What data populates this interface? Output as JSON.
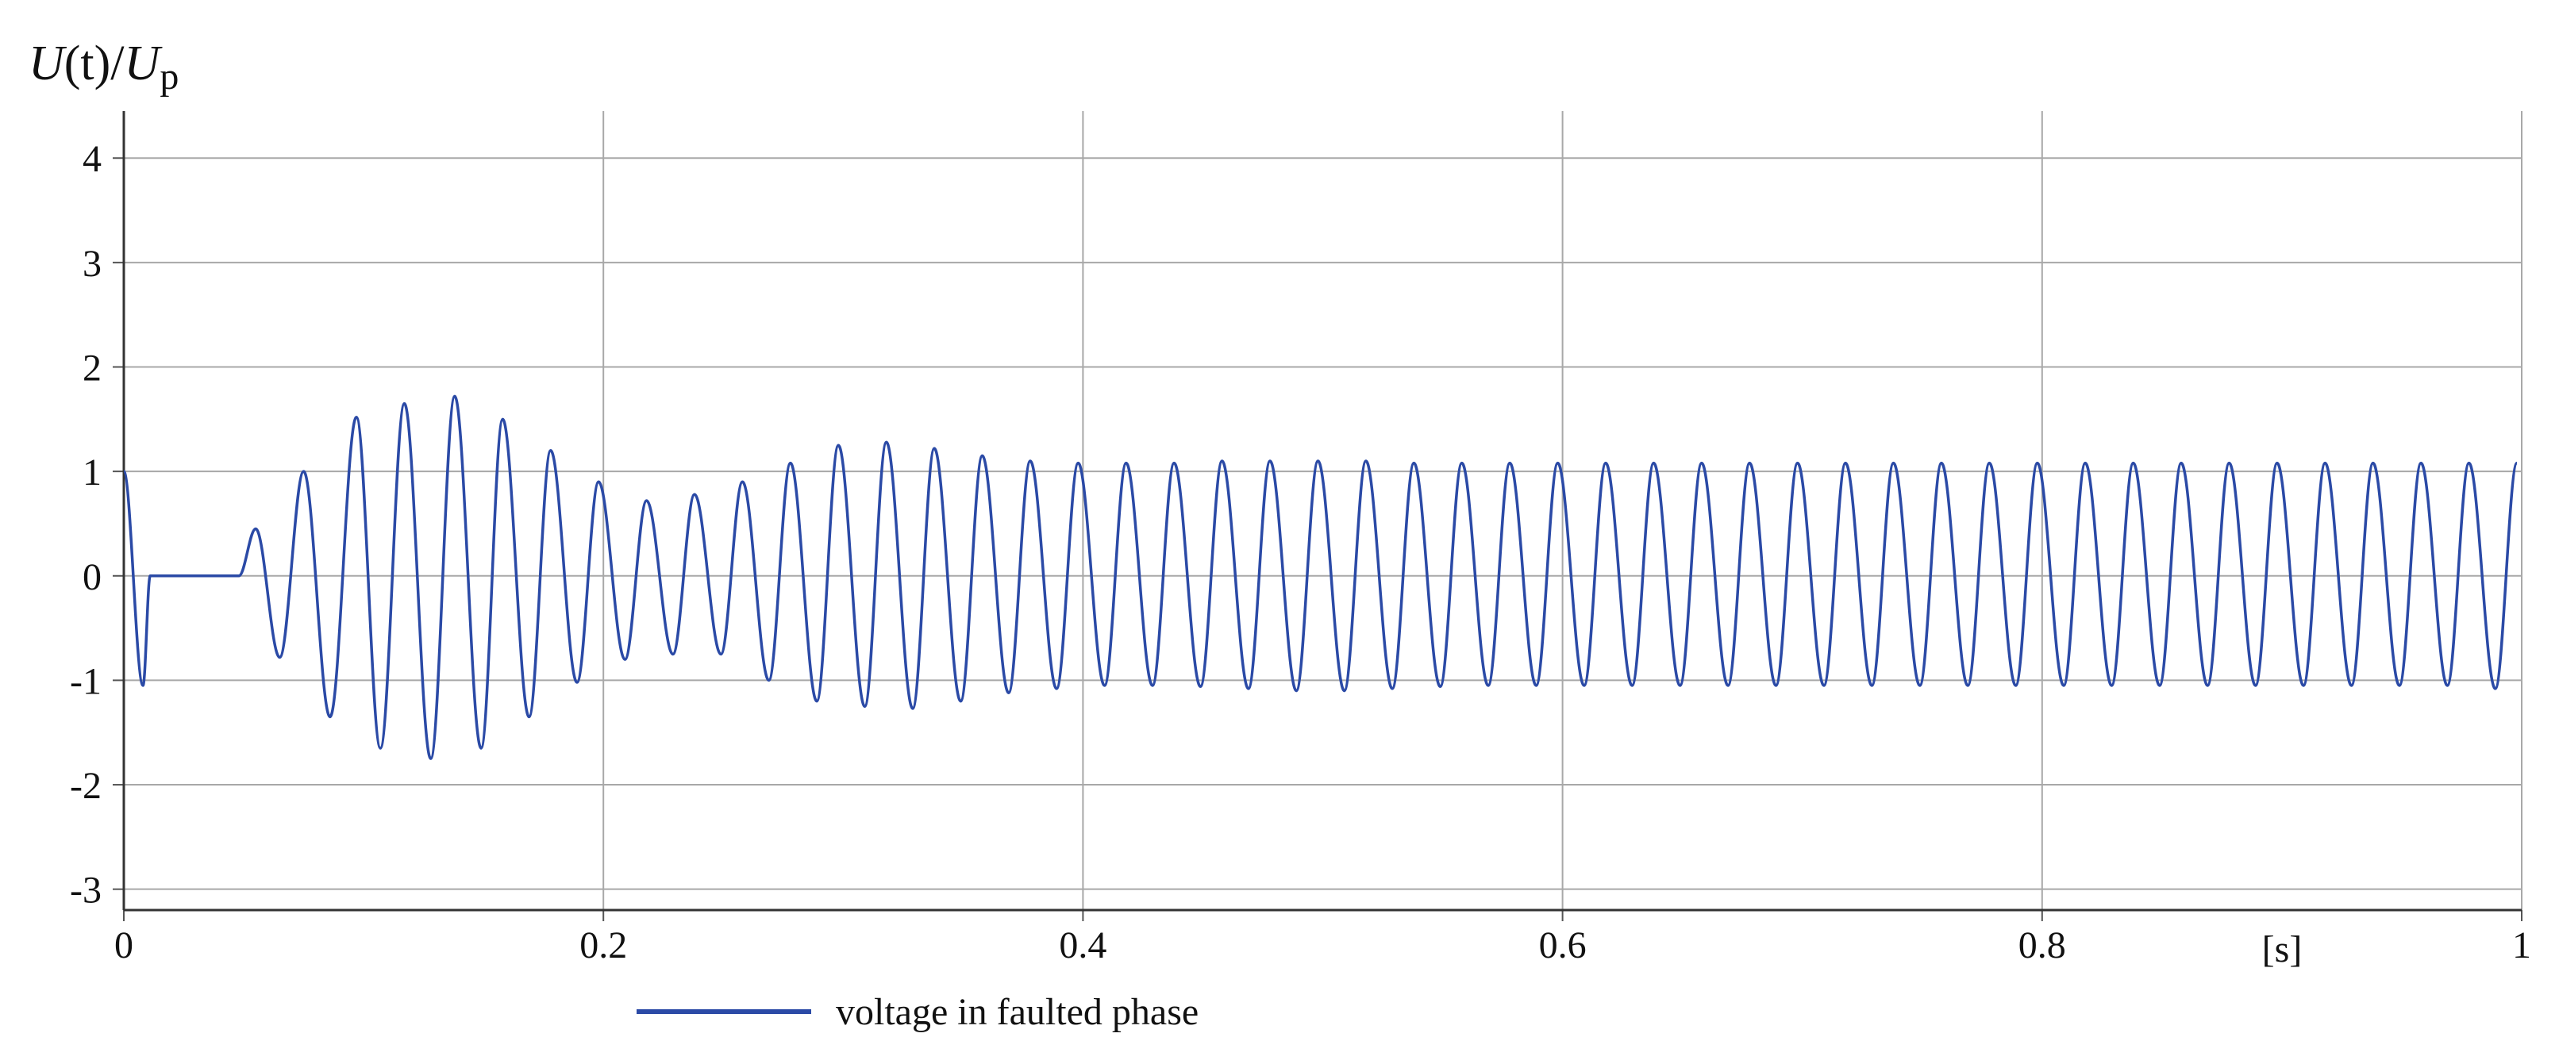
{
  "chart_data": {
    "type": "line",
    "y_label": [
      "U",
      "(t)/",
      "U",
      "p"
    ],
    "x_unit": "[s]",
    "xlim": [
      0,
      1
    ],
    "xticks": [
      0,
      0.2,
      0.4,
      0.6,
      0.8,
      1
    ],
    "ylim": [
      -3.2,
      4.45
    ],
    "yticks": [
      -3,
      -2,
      -1,
      0,
      1,
      2,
      3,
      4
    ],
    "grid": true,
    "legend": "bottom",
    "series": [
      {
        "name": "voltage in faulted phase",
        "color": "#2b4aa6",
        "x": [
          0,
          0.008,
          0.011,
          0.048,
          0.055,
          0.065,
          0.075,
          0.086,
          0.097,
          0.107,
          0.117,
          0.128,
          0.138,
          0.149,
          0.158,
          0.169,
          0.178,
          0.189,
          0.198,
          0.209,
          0.218,
          0.229,
          0.238,
          0.249,
          0.258,
          0.269,
          0.278,
          0.289,
          0.298,
          0.309,
          0.318,
          0.329,
          0.338,
          0.349,
          0.358,
          0.369,
          0.378,
          0.389,
          0.398,
          0.409,
          0.418,
          0.429,
          0.438,
          0.449,
          0.458,
          0.469,
          0.478,
          0.489,
          0.498,
          0.509,
          0.518,
          0.529,
          0.538,
          0.549,
          0.558,
          0.569,
          0.578,
          0.589,
          0.598,
          0.609,
          0.618,
          0.629,
          0.638,
          0.649,
          0.658,
          0.669,
          0.678,
          0.689,
          0.698,
          0.709,
          0.718,
          0.729,
          0.738,
          0.749,
          0.758,
          0.769,
          0.778,
          0.789,
          0.798,
          0.809,
          0.818,
          0.829,
          0.838,
          0.849,
          0.858,
          0.869,
          0.878,
          0.889,
          0.898,
          0.909,
          0.918,
          0.929,
          0.938,
          0.949,
          0.958,
          0.969,
          0.978,
          0.989,
          0.998
        ],
        "values": [
          1.0,
          -1.05,
          0,
          0,
          0.45,
          -0.78,
          1.0,
          -1.35,
          1.52,
          -1.65,
          1.65,
          -1.75,
          1.72,
          -1.65,
          1.5,
          -1.35,
          1.2,
          -1.02,
          0.9,
          -0.8,
          0.72,
          -0.75,
          0.78,
          -0.75,
          0.9,
          -1.0,
          1.08,
          -1.2,
          1.25,
          -1.25,
          1.28,
          -1.27,
          1.22,
          -1.2,
          1.15,
          -1.12,
          1.1,
          -1.08,
          1.08,
          -1.05,
          1.08,
          -1.05,
          1.08,
          -1.06,
          1.1,
          -1.08,
          1.1,
          -1.1,
          1.1,
          -1.1,
          1.1,
          -1.08,
          1.08,
          -1.06,
          1.08,
          -1.05,
          1.08,
          -1.05,
          1.08,
          -1.05,
          1.08,
          -1.05,
          1.08,
          -1.05,
          1.08,
          -1.05,
          1.08,
          -1.05,
          1.08,
          -1.05,
          1.08,
          -1.05,
          1.08,
          -1.05,
          1.08,
          -1.05,
          1.08,
          -1.05,
          1.08,
          -1.05,
          1.08,
          -1.05,
          1.08,
          -1.05,
          1.08,
          -1.05,
          1.08,
          -1.05,
          1.08,
          -1.05,
          1.08,
          -1.05,
          1.08,
          -1.05,
          1.08,
          -1.05,
          1.08,
          -1.08,
          1.08
        ]
      }
    ]
  }
}
